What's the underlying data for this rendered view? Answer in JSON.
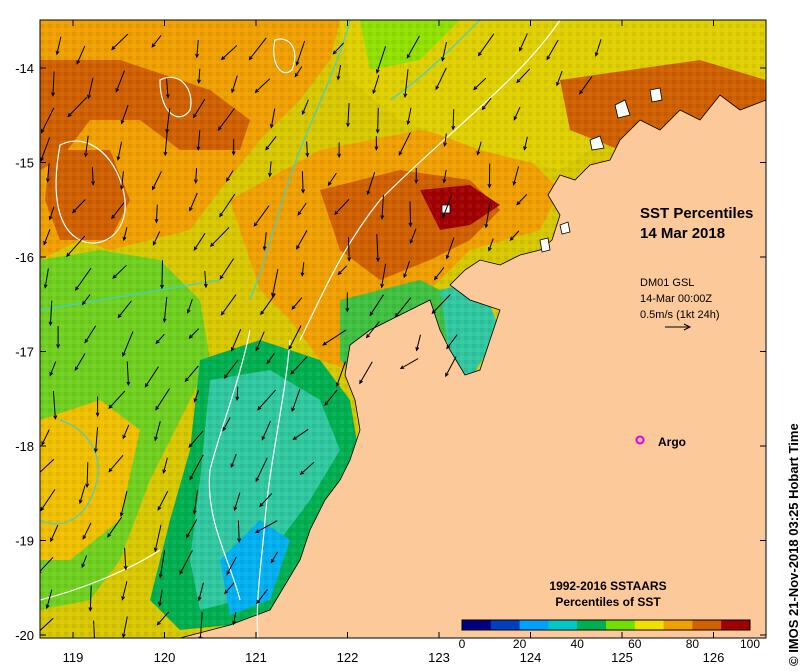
{
  "map": {
    "title_line1": "SST Percentiles",
    "title_line2": "14 Mar 2018",
    "lon_ticks": [
      "119",
      "120",
      "121",
      "122",
      "123",
      "124",
      "125",
      "126"
    ],
    "lat_ticks": [
      "-14",
      "-15",
      "-16",
      "-17",
      "-18",
      "-19",
      "-20"
    ],
    "current_info": {
      "line1": "DM01 GSL",
      "line2": "14-Mar 00:00Z",
      "line3": "0.5m/s (1kt 24h)"
    },
    "argo_label": "Argo",
    "colorbar": {
      "title_line1": "1992-2016 SSTAARS",
      "title_line2": "Percentiles of SST",
      "tick_labels": [
        "0",
        "20",
        "40",
        "60",
        "80",
        "100"
      ],
      "colors": [
        "#00007f",
        "#0040c0",
        "#00a0ff",
        "#00c8c8",
        "#00b050",
        "#70e000",
        "#f0e000",
        "#f0a000",
        "#d06000",
        "#a00000"
      ]
    },
    "copyright": "© IMOS 21-Nov-2018 03:25 Hobart Time",
    "land_color": "#fcc99a"
  }
}
